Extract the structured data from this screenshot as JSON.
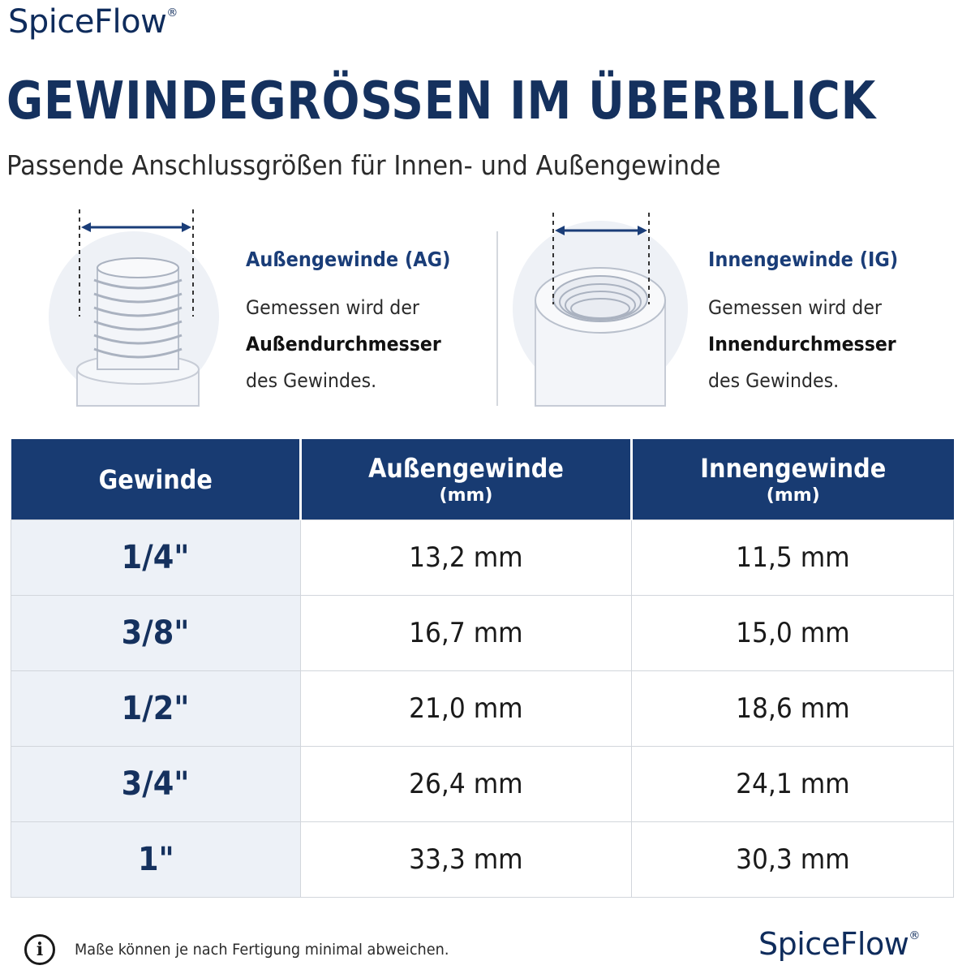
{
  "brand": {
    "name": "SpiceFlow",
    "reg": "®"
  },
  "header": {
    "title": "GEWINDEGRÖSSEN IM ÜBERBLICK",
    "subtitle": "Passende Anschlussgrößen für Innen- und Außengewinde"
  },
  "info": {
    "outer": {
      "title": "Außengewinde (AG)",
      "line1": "Gemessen wird der",
      "line2": "Außendurchmesser",
      "line3": "des Gewindes."
    },
    "inner": {
      "title": "Innengewinde (IG)",
      "line1": "Gemessen wird der",
      "line2": "Innendurchmesser",
      "line3": "des Gewindes."
    }
  },
  "table": {
    "headers": [
      {
        "label": "Gewinde",
        "unit": ""
      },
      {
        "label": "Außengewinde",
        "unit": "(mm)"
      },
      {
        "label": "Innengewinde",
        "unit": "(mm)"
      }
    ],
    "rows": [
      {
        "size": "1/4\"",
        "outer": "13,2 mm",
        "inner": "11,5 mm"
      },
      {
        "size": "3/8\"",
        "outer": "16,7 mm",
        "inner": "15,0 mm"
      },
      {
        "size": "1/2\"",
        "outer": "21,0 mm",
        "inner": "18,6 mm"
      },
      {
        "size": "3/4\"",
        "outer": "26,4 mm",
        "inner": "24,1 mm"
      },
      {
        "size": "1\"",
        "outer": "33,3 mm",
        "inner": "30,3 mm"
      }
    ]
  },
  "footer": {
    "icon": "info-icon",
    "icon_glyph": "i",
    "note": "Maße können je nach Fertigung minimal abweichen."
  },
  "colors": {
    "brand_navy": "#15315e",
    "header_bg": "#183b72",
    "accent_blue": "#1a3d78",
    "row_label_bg": "#edf1f7"
  }
}
